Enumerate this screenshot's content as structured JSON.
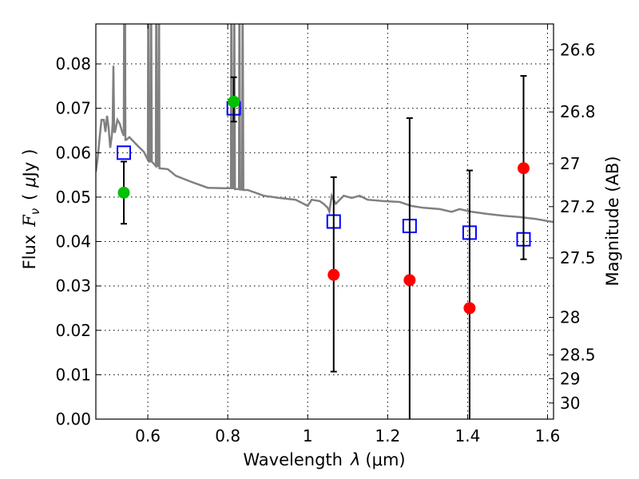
{
  "chart_data": {
    "type": "scatter",
    "xlabel": {
      "text": "Wavelength",
      "symbol": "λ",
      "unit": "(μm)"
    },
    "ylabel": {
      "text": "Flux",
      "symbol": "F",
      "sub": "ν",
      "unit_open": "(",
      "unit_mu": "μ",
      "unit": "Jy",
      "unit_close": ")"
    },
    "y2label": "Magnitude (AB)",
    "xlim": [
      0.47,
      1.615
    ],
    "ylim": [
      0.0,
      0.089
    ],
    "xticks": [
      {
        "v": 0.6,
        "label": "0.6"
      },
      {
        "v": 0.8,
        "label": "0.8"
      },
      {
        "v": 1.0,
        "label": "1"
      },
      {
        "v": 1.2,
        "label": "1.2"
      },
      {
        "v": 1.4,
        "label": "1.4"
      },
      {
        "v": 1.6,
        "label": "1.6"
      }
    ],
    "yticks": [
      {
        "v": 0,
        "label": "0.00"
      },
      {
        "v": 0.01,
        "label": "0.01"
      },
      {
        "v": 0.02,
        "label": "0.02"
      },
      {
        "v": 0.03,
        "label": "0.03"
      },
      {
        "v": 0.04,
        "label": "0.04"
      },
      {
        "v": 0.05,
        "label": "0.05"
      },
      {
        "v": 0.06,
        "label": "0.06"
      },
      {
        "v": 0.07,
        "label": "0.07"
      },
      {
        "v": 0.08,
        "label": "0.08"
      }
    ],
    "y2ticks": [
      {
        "v": 26.6,
        "label": "26.6"
      },
      {
        "v": 26.8,
        "label": "26.8"
      },
      {
        "v": 27,
        "label": "27"
      },
      {
        "v": 27.2,
        "label": "27.2"
      },
      {
        "v": 27.5,
        "label": "27.5"
      },
      {
        "v": 28,
        "label": "28"
      },
      {
        "v": 28.5,
        "label": "28.5"
      },
      {
        "v": 29,
        "label": "29"
      },
      {
        "v": 30,
        "label": "30"
      }
    ],
    "ab_zeropoint_ujy": 23.9,
    "grid": true,
    "colors": {
      "spectrum": "#808080",
      "model": "#0000ff",
      "detected": "#00c000",
      "upper": "#ff0000",
      "errorbar": "#000000"
    },
    "spectrum": [
      [
        0.47,
        0.0557
      ],
      [
        0.474,
        0.0584
      ],
      [
        0.48,
        0.0638
      ],
      [
        0.484,
        0.0674
      ],
      [
        0.49,
        0.0674
      ],
      [
        0.494,
        0.0647
      ],
      [
        0.498,
        0.0683
      ],
      [
        0.502,
        0.0656
      ],
      [
        0.506,
        0.0611
      ],
      [
        0.51,
        0.0638
      ],
      [
        0.512,
        0.0665
      ],
      [
        0.514,
        0.0796
      ],
      [
        0.516,
        0.0647
      ],
      [
        0.518,
        0.0647
      ],
      [
        0.524,
        0.0674
      ],
      [
        0.53,
        0.0665
      ],
      [
        0.536,
        0.0647
      ],
      [
        0.54,
        0.0638
      ],
      [
        0.541,
        0.1
      ],
      [
        0.543,
        0.1
      ],
      [
        0.544,
        0.0629
      ],
      [
        0.546,
        0.0629
      ],
      [
        0.554,
        0.0635
      ],
      [
        0.57,
        0.062
      ],
      [
        0.59,
        0.0602
      ],
      [
        0.6,
        0.0584
      ],
      [
        0.601,
        0.1
      ],
      [
        0.603,
        0.058
      ],
      [
        0.607,
        0.058
      ],
      [
        0.608,
        0.1
      ],
      [
        0.61,
        0.058
      ],
      [
        0.62,
        0.057
      ],
      [
        0.621,
        0.1
      ],
      [
        0.623,
        0.057
      ],
      [
        0.627,
        0.057
      ],
      [
        0.628,
        0.1
      ],
      [
        0.629,
        0.0565
      ],
      [
        0.65,
        0.0563
      ],
      [
        0.67,
        0.0548
      ],
      [
        0.71,
        0.0534
      ],
      [
        0.75,
        0.0521
      ],
      [
        0.79,
        0.052
      ],
      [
        0.808,
        0.052
      ],
      [
        0.809,
        0.1
      ],
      [
        0.811,
        0.052
      ],
      [
        0.815,
        0.052
      ],
      [
        0.816,
        0.1
      ],
      [
        0.818,
        0.0518
      ],
      [
        0.828,
        0.0518
      ],
      [
        0.829,
        0.1
      ],
      [
        0.831,
        0.0517
      ],
      [
        0.836,
        0.0517
      ],
      [
        0.837,
        0.1
      ],
      [
        0.839,
        0.0516
      ],
      [
        0.85,
        0.0516
      ],
      [
        0.89,
        0.0503
      ],
      [
        0.93,
        0.0498
      ],
      [
        0.97,
        0.0494
      ],
      [
        0.99,
        0.0485
      ],
      [
        1.0,
        0.048
      ],
      [
        1.01,
        0.0494
      ],
      [
        1.03,
        0.0491
      ],
      [
        1.04,
        0.0485
      ],
      [
        1.05,
        0.0476
      ],
      [
        1.054,
        0.0467
      ],
      [
        1.06,
        0.0503
      ],
      [
        1.07,
        0.0485
      ],
      [
        1.08,
        0.0494
      ],
      [
        1.09,
        0.0503
      ],
      [
        1.11,
        0.0498
      ],
      [
        1.13,
        0.0503
      ],
      [
        1.15,
        0.0494
      ],
      [
        1.19,
        0.0491
      ],
      [
        1.23,
        0.0489
      ],
      [
        1.26,
        0.048
      ],
      [
        1.29,
        0.0476
      ],
      [
        1.33,
        0.0473
      ],
      [
        1.36,
        0.0467
      ],
      [
        1.38,
        0.0473
      ],
      [
        1.41,
        0.0467
      ],
      [
        1.45,
        0.0462
      ],
      [
        1.49,
        0.0458
      ],
      [
        1.53,
        0.0455
      ],
      [
        1.57,
        0.0451
      ],
      [
        1.6,
        0.0446
      ],
      [
        1.615,
        0.0444
      ]
    ],
    "model_points": [
      {
        "x": 0.54,
        "y": 0.06
      },
      {
        "x": 0.815,
        "y": 0.07
      },
      {
        "x": 1.065,
        "y": 0.0445
      },
      {
        "x": 1.255,
        "y": 0.0435
      },
      {
        "x": 1.405,
        "y": 0.042
      },
      {
        "x": 1.54,
        "y": 0.0405
      }
    ],
    "detected_points": [
      {
        "x": 0.54,
        "y": 0.051,
        "lo": 0.044,
        "hi": 0.058
      },
      {
        "x": 0.815,
        "y": 0.0715,
        "lo": 0.067,
        "hi": 0.077
      }
    ],
    "upper_points": [
      {
        "x": 1.065,
        "y": 0.0325,
        "lo": 0.0107,
        "hi": 0.0545
      },
      {
        "x": 1.255,
        "y": 0.0313,
        "lo": 0.0,
        "hi": 0.0678
      },
      {
        "x": 1.405,
        "y": 0.025,
        "lo": 0.0,
        "hi": 0.056
      },
      {
        "x": 1.54,
        "y": 0.0565,
        "lo": 0.036,
        "hi": 0.0773
      }
    ]
  }
}
